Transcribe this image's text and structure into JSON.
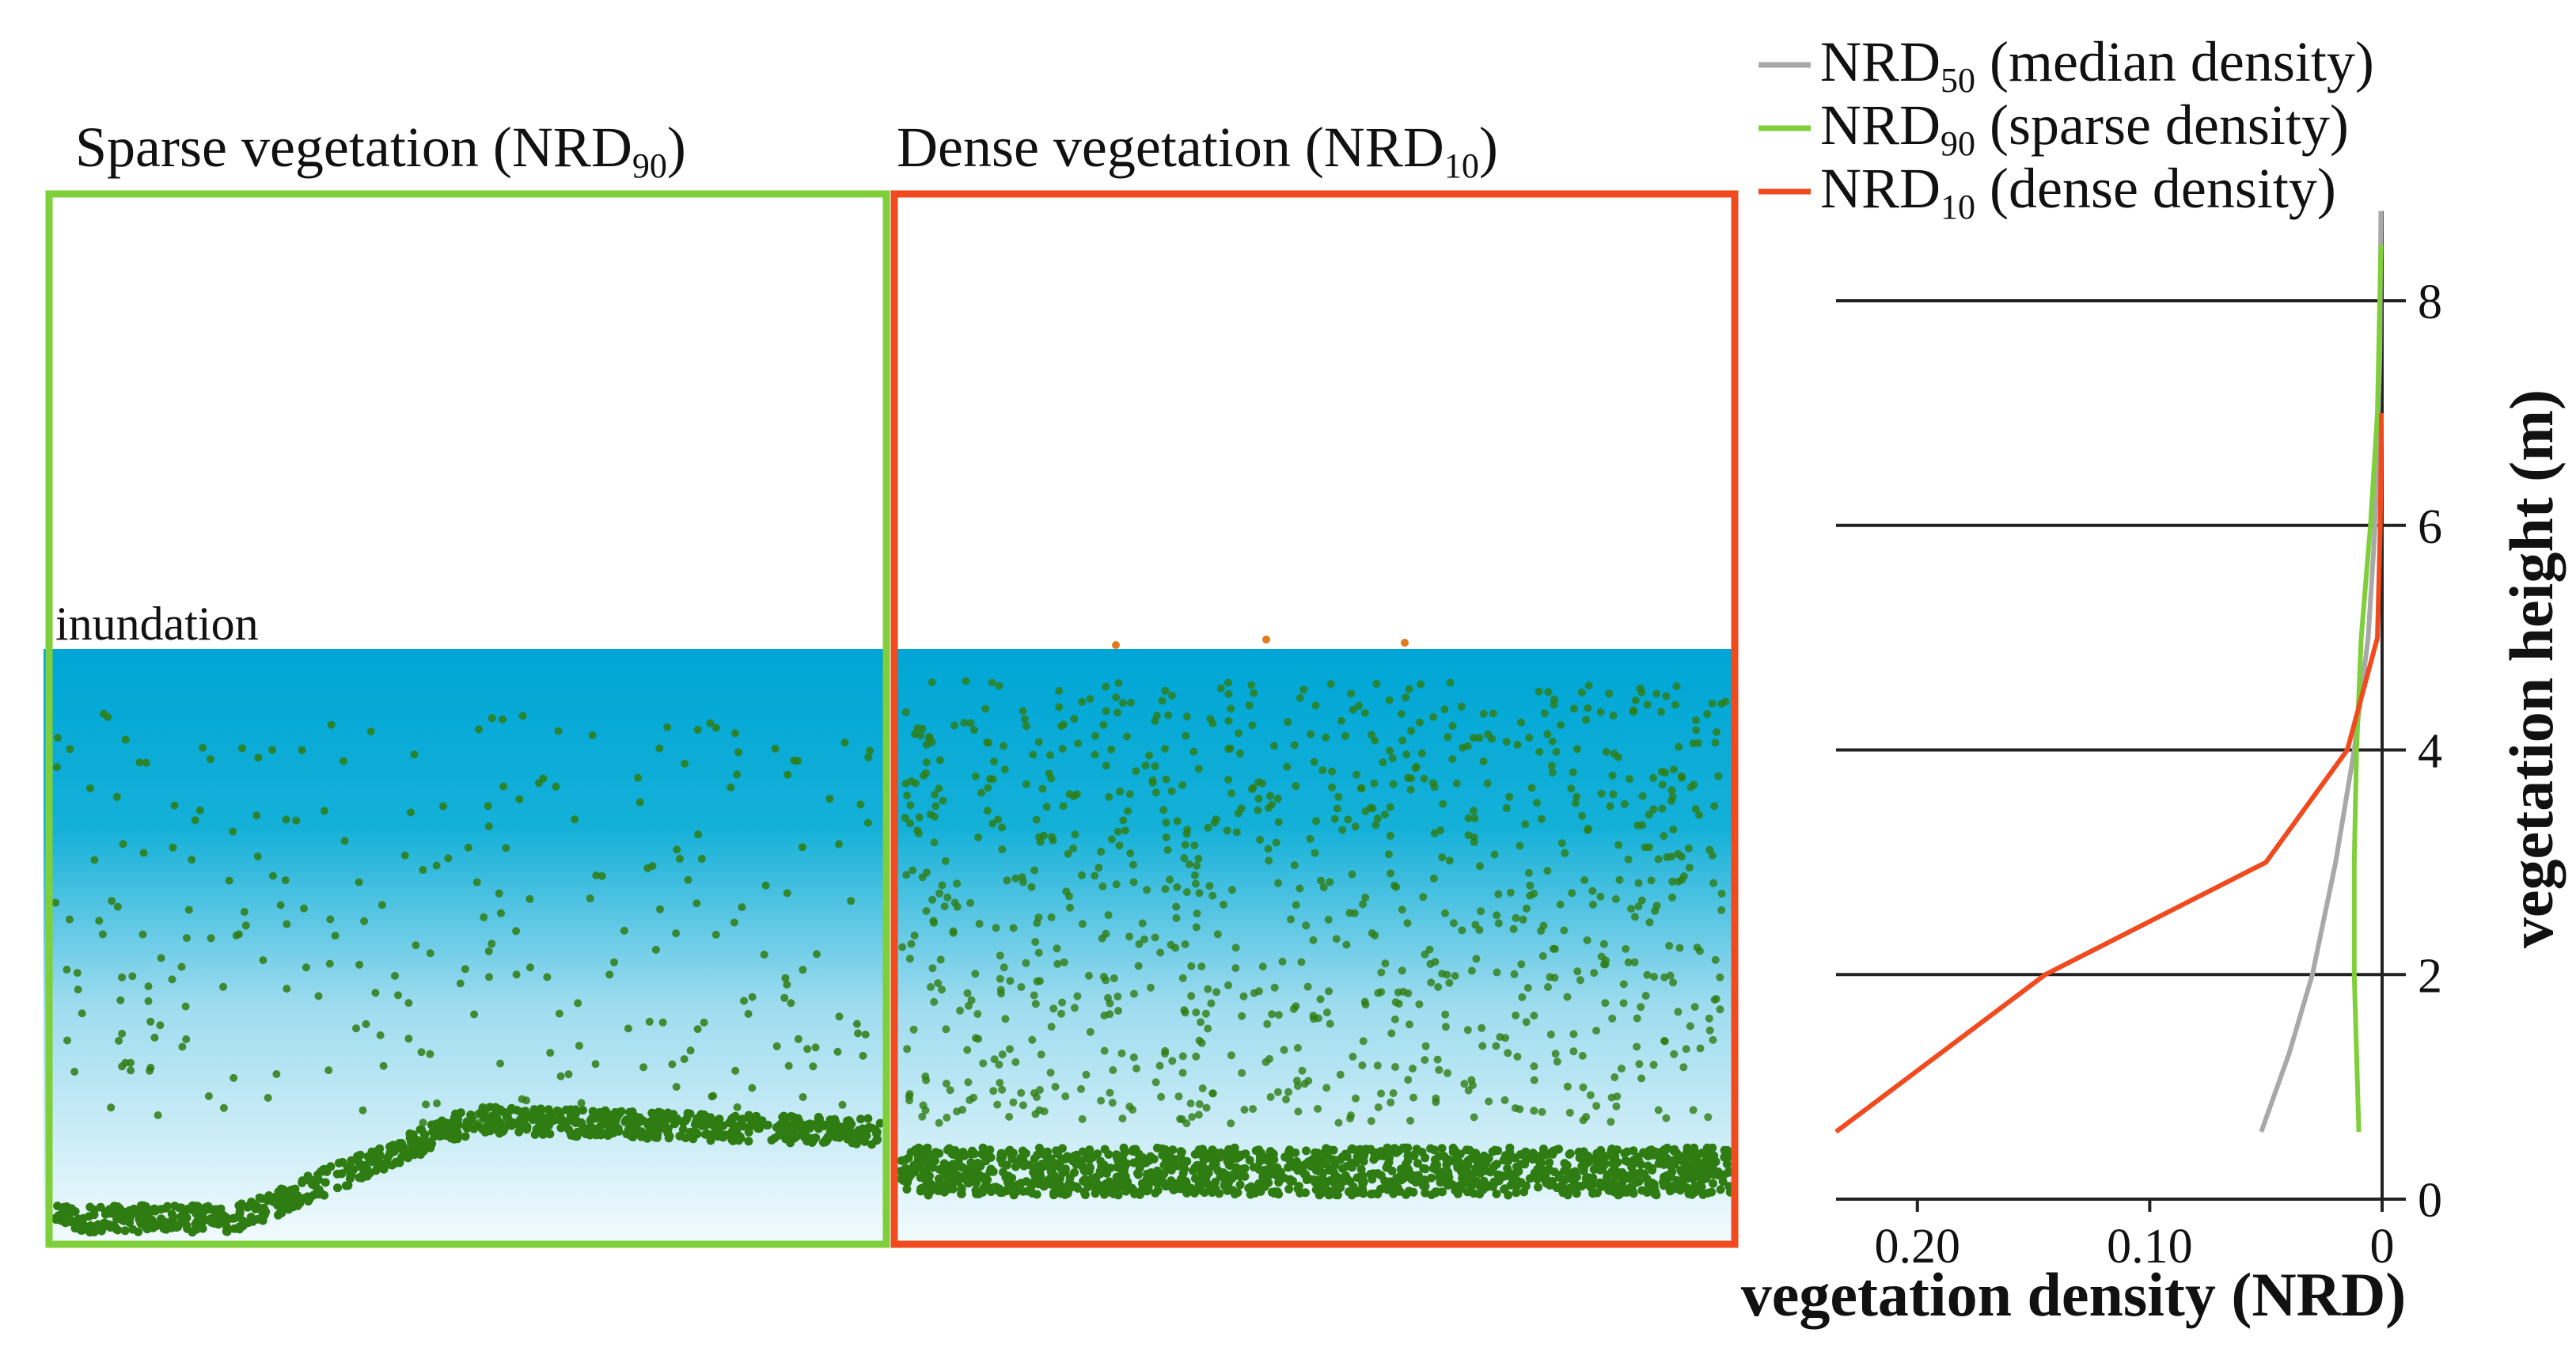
{
  "panels": {
    "sparse": {
      "title_main": "Sparse vegetation (NRD",
      "title_sub": "90",
      "title_end": ")",
      "frame_color": "#7fcf3a"
    },
    "dense": {
      "title_main": "Dense vegetation (NRD",
      "title_sub": "10",
      "title_end": ")",
      "frame_color": "#f04a1e"
    },
    "inundation_label": "inundation",
    "water_top_color": "#00a6d6",
    "point_color": "#2f7d12"
  },
  "chart_data": {
    "type": "line",
    "xlabel": "vegetation density (NRD)",
    "ylabel": "vegetation height (m)",
    "x_ticks": [
      0.2,
      0.1,
      0
    ],
    "x_tick_labels": [
      "0.20",
      "0.10",
      "0"
    ],
    "y_ticks": [
      0,
      2,
      4,
      6,
      8
    ],
    "y_tick_labels": [
      "0",
      "2",
      "4",
      "6",
      "8"
    ],
    "xlim": [
      0.235,
      0
    ],
    "ylim": [
      0,
      8.8
    ],
    "grid": true,
    "legend_position": "top-right",
    "series": [
      {
        "name_main": "NRD",
        "name_sub": "50",
        "name_rest": " (median density)",
        "color": "#a8a8a8",
        "x": [
          0.052,
          0.04,
          0.03,
          0.02,
          0.012,
          0.006,
          0.003,
          0.001,
          0.0005
        ],
        "y": [
          0.6,
          1.3,
          2.0,
          3.0,
          4.0,
          5.0,
          6.0,
          7.5,
          8.8
        ]
      },
      {
        "name_main": "NRD",
        "name_sub": "90",
        "name_rest": " (sparse density)",
        "color": "#7fcf3a",
        "x": [
          0.01,
          0.011,
          0.012,
          0.012,
          0.011,
          0.009,
          0.005,
          0.002,
          0.0005
        ],
        "y": [
          0.6,
          1.3,
          2.0,
          3.0,
          4.0,
          5.0,
          6.0,
          7.0,
          8.5
        ]
      },
      {
        "name_main": "NRD",
        "name_sub": "10",
        "name_rest": " (dense density)",
        "color": "#f04a1e",
        "x": [
          0.235,
          0.145,
          0.05,
          0.015,
          0.002,
          0.0008,
          0.0003
        ],
        "y": [
          0.6,
          2.0,
          3.0,
          4.0,
          5.0,
          6.0,
          7.0
        ]
      }
    ]
  }
}
